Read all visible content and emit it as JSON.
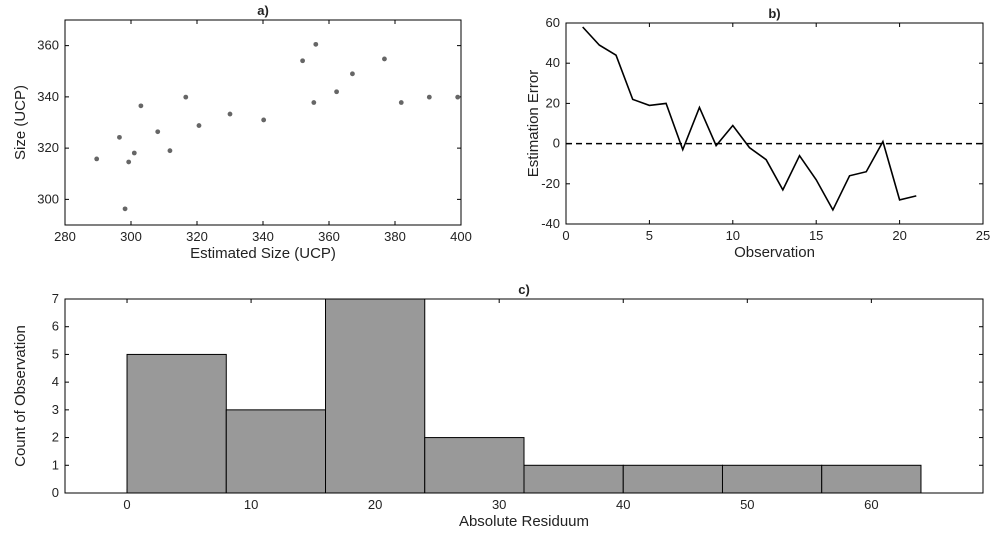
{
  "chart_data": [
    {
      "type": "scatter",
      "title": "a)",
      "xlabel": "Estimated Size (UCP)",
      "ylabel": "Size (UCP)",
      "xlim": [
        280,
        400
      ],
      "ylim": [
        290,
        370
      ],
      "xticks": [
        280,
        300,
        320,
        340,
        360,
        380,
        400
      ],
      "yticks": [
        300,
        320,
        340,
        360
      ],
      "points": [
        {
          "x": 289.6,
          "y": 315.8
        },
        {
          "x": 296.5,
          "y": 324.2
        },
        {
          "x": 298.2,
          "y": 296.3
        },
        {
          "x": 299.3,
          "y": 314.6
        },
        {
          "x": 301.0,
          "y": 318.1
        },
        {
          "x": 303.0,
          "y": 336.5
        },
        {
          "x": 308.1,
          "y": 326.4
        },
        {
          "x": 311.8,
          "y": 319.0
        },
        {
          "x": 316.6,
          "y": 339.9
        },
        {
          "x": 320.6,
          "y": 328.8
        },
        {
          "x": 330.0,
          "y": 333.3
        },
        {
          "x": 340.2,
          "y": 331.0
        },
        {
          "x": 352.0,
          "y": 354.1
        },
        {
          "x": 355.4,
          "y": 337.8
        },
        {
          "x": 356.0,
          "y": 360.5
        },
        {
          "x": 362.3,
          "y": 342.0
        },
        {
          "x": 367.1,
          "y": 349.0
        },
        {
          "x": 376.8,
          "y": 354.8
        },
        {
          "x": 381.9,
          "y": 337.8
        },
        {
          "x": 390.4,
          "y": 339.9
        },
        {
          "x": 399.0,
          "y": 339.9
        }
      ],
      "color": "#666666"
    },
    {
      "type": "line",
      "title": "b)",
      "xlabel": "Observation",
      "ylabel": "Estimation Error",
      "xlim": [
        0,
        25
      ],
      "ylim": [
        -40,
        60
      ],
      "xticks": [
        0,
        5,
        10,
        15,
        20,
        25
      ],
      "yticks": [
        -40,
        -20,
        0,
        20,
        40,
        60
      ],
      "x": [
        1,
        2,
        3,
        4,
        5,
        6,
        7,
        8,
        9,
        10,
        11,
        12,
        13,
        14,
        15,
        16,
        17,
        18,
        19,
        20,
        21
      ],
      "y": [
        58,
        49,
        44,
        22,
        19,
        20,
        -3,
        18,
        -1,
        9,
        -2,
        -8,
        -23,
        -6,
        -18,
        -33,
        -16,
        -14,
        1,
        -28,
        -26
      ],
      "reference_line": {
        "y": 0,
        "style": "dashed"
      },
      "color": "#000000"
    },
    {
      "type": "bar",
      "title": "c)",
      "xlabel": "Absolute Residuum",
      "ylabel": "Count of Observation",
      "xlim": [
        -5,
        69
      ],
      "ylim": [
        0,
        7
      ],
      "xticks": [
        0,
        10,
        20,
        30,
        40,
        50,
        60
      ],
      "yticks": [
        0,
        1,
        2,
        3,
        4,
        5,
        6,
        7
      ],
      "bins": [
        {
          "from": 0,
          "to": 8,
          "value": 5
        },
        {
          "from": 8,
          "to": 16,
          "value": 3
        },
        {
          "from": 16,
          "to": 24,
          "value": 7
        },
        {
          "from": 24,
          "to": 32,
          "value": 2
        },
        {
          "from": 32,
          "to": 40,
          "value": 1
        },
        {
          "from": 40,
          "to": 48,
          "value": 1
        },
        {
          "from": 48,
          "to": 56,
          "value": 1
        },
        {
          "from": 56,
          "to": 64,
          "value": 1
        }
      ],
      "color": "#999999"
    }
  ]
}
